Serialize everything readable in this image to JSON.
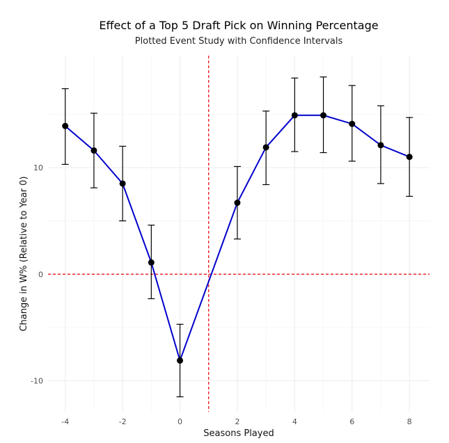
{
  "chart_data": {
    "type": "line",
    "title": "Effect of a Top 5 Draft Pick on Winning Percentage",
    "subtitle": "Plotted Event Study with Confidence Intervals",
    "xlabel": "Seasons Played",
    "ylabel": "Change in W% (Relative to Year 0)",
    "xlim": [
      -4.6,
      8.7
    ],
    "ylim": [
      -12.9,
      20.5
    ],
    "xticks": [
      -4,
      -2,
      0,
      2,
      4,
      6,
      8
    ],
    "yticks": [
      -10,
      0,
      10
    ],
    "grid": true,
    "x": [
      -4,
      -3,
      -2,
      -1,
      0,
      2,
      3,
      4,
      5,
      6,
      7,
      8
    ],
    "series": [
      {
        "values": [
          13.9,
          11.6,
          8.5,
          1.1,
          -8.1,
          6.7,
          11.9,
          14.9,
          14.9,
          14.1,
          12.1,
          11.0
        ],
        "lower": [
          10.3,
          8.1,
          5.0,
          -2.3,
          -11.5,
          3.3,
          8.4,
          11.5,
          11.4,
          10.6,
          8.5,
          7.3
        ],
        "upper": [
          17.4,
          15.1,
          12.0,
          4.6,
          -4.7,
          10.1,
          15.3,
          18.4,
          18.5,
          17.7,
          15.8,
          14.7
        ],
        "color": "#0000cc"
      }
    ],
    "reference_lines": {
      "vertical_x": 1,
      "horizontal_y": 0,
      "color": "#e8000b"
    }
  }
}
